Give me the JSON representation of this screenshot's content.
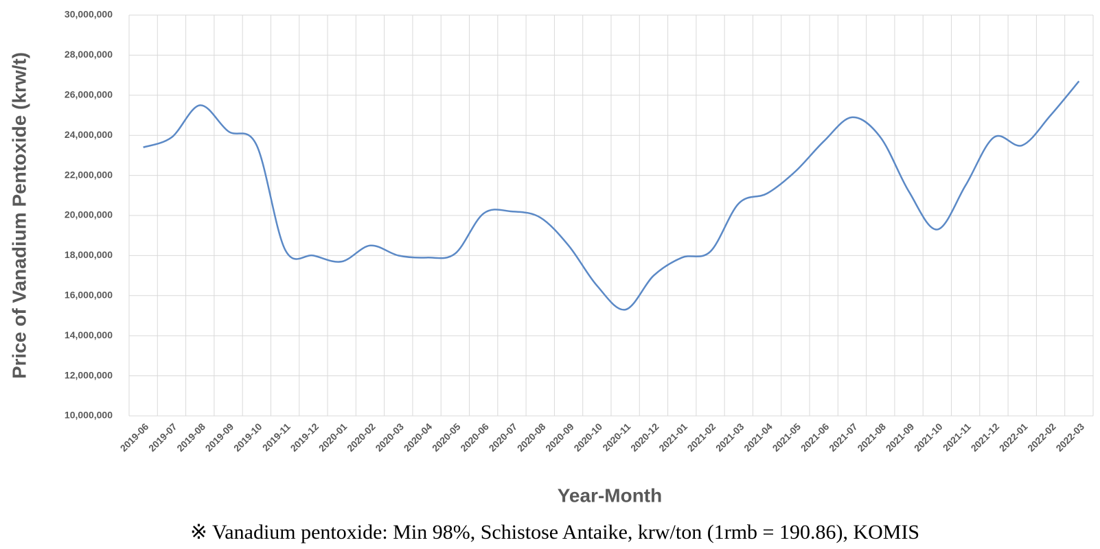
{
  "chart_data": {
    "type": "line",
    "x_label": "Year-Month",
    "y_label": "Price of Vanadium Pentoxide (krw/t)",
    "footnote": "※ Vanadium pentoxide: Min 98%, Schistose Antaike, krw/ton (1rmb = 190.86), KOMIS",
    "categories": [
      "2019-06",
      "2019-07",
      "2019-08",
      "2019-09",
      "2019-10",
      "2019-11",
      "2019-12",
      "2020-01",
      "2020-02",
      "2020-03",
      "2020-04",
      "2020-05",
      "2020-06",
      "2020-07",
      "2020-08",
      "2020-09",
      "2020-10",
      "2020-11",
      "2020-12",
      "2021-01",
      "2021-02",
      "2021-03",
      "2021-04",
      "2021-05",
      "2021-06",
      "2021-07",
      "2021-08",
      "2021-09",
      "2021-10",
      "2021-11",
      "2021-12",
      "2022-01",
      "2022-02",
      "2022-03"
    ],
    "series": [
      {
        "color": "#5b89c6",
        "values": [
          23400000,
          23900000,
          25500000,
          24200000,
          23500000,
          18300000,
          18000000,
          17700000,
          18500000,
          18000000,
          17900000,
          18100000,
          20100000,
          20200000,
          19900000,
          18500000,
          16500000,
          15300000,
          17000000,
          17900000,
          18200000,
          20600000,
          21100000,
          22200000,
          23700000,
          24900000,
          23900000,
          21200000,
          19300000,
          21500000,
          23900000,
          23500000,
          25000000,
          26700000
        ]
      }
    ],
    "ylim": [
      10000000,
      30000000
    ],
    "yticks": [
      {
        "value": 10000000,
        "label": "10,000,000"
      },
      {
        "value": 12000000,
        "label": "12,000,000"
      },
      {
        "value": 14000000,
        "label": "14,000,000"
      },
      {
        "value": 16000000,
        "label": "16,000,000"
      },
      {
        "value": 18000000,
        "label": "18,000,000"
      },
      {
        "value": 20000000,
        "label": "20,000,000"
      },
      {
        "value": 22000000,
        "label": "22,000,000"
      },
      {
        "value": 24000000,
        "label": "24,000,000"
      },
      {
        "value": 26000000,
        "label": "26,000,000"
      },
      {
        "value": 28000000,
        "label": "28,000,000"
      },
      {
        "value": 30000000,
        "label": "30,000,000"
      }
    ],
    "grid": true
  }
}
